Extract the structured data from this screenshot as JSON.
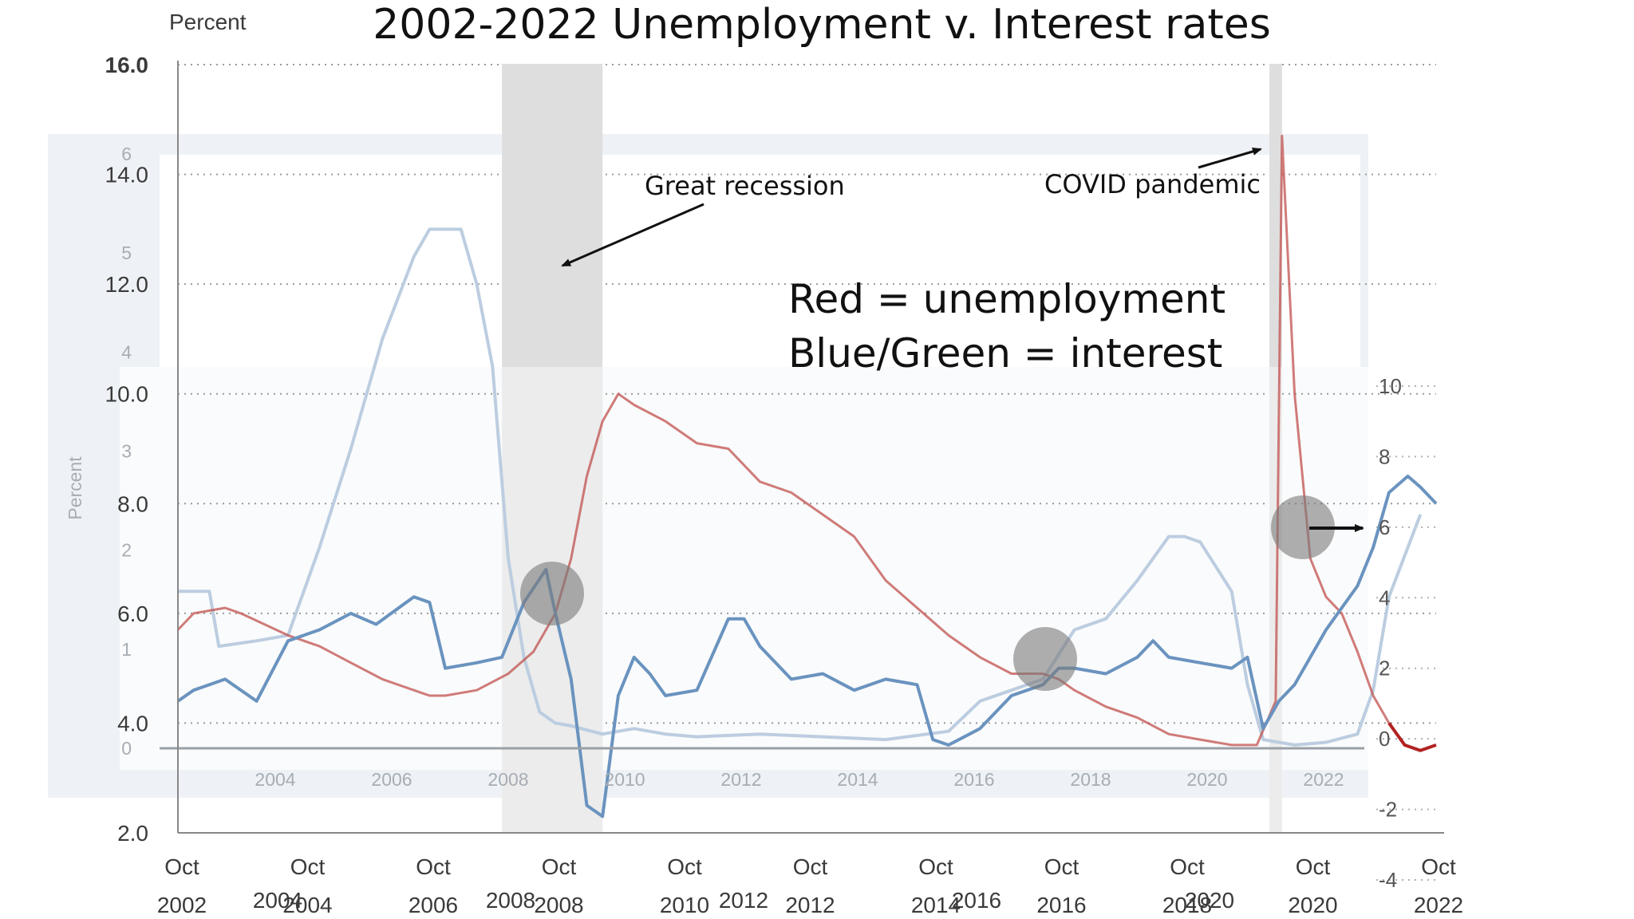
{
  "chart_data": {
    "type": "line",
    "title": "2002-2022 Unemployment v. Interest rates",
    "ylabel": "Percent",
    "inset_ylabel": "Percent",
    "left_axis": {
      "ylim": [
        2,
        16
      ],
      "ticks": [
        "2.0",
        "4.0",
        "6.0",
        "8.0",
        "10.0",
        "12.0",
        "14.0",
        "16.0"
      ]
    },
    "inset_left_axis": {
      "ylim": [
        0,
        6
      ],
      "ticks": [
        "0",
        "1",
        "2",
        "3",
        "4",
        "5",
        "6"
      ]
    },
    "right_axis": {
      "ylim": [
        -4,
        10
      ],
      "ticks": [
        "-4",
        "-2",
        "0",
        "2",
        "4",
        "6",
        "8",
        "10"
      ]
    },
    "x_months": [
      "Oct",
      "Oct",
      "Oct",
      "Oct",
      "Oct",
      "Oct",
      "Oct",
      "Oct",
      "Oct",
      "Oct",
      "Oct"
    ],
    "x_years": [
      "2002",
      "2004",
      "2006",
      "2008",
      "2010",
      "2012",
      "2014",
      "2016",
      "2018",
      "2020",
      "2022"
    ],
    "inset_x_years": [
      "2004",
      "2006",
      "2008",
      "2010",
      "2012",
      "2014",
      "2016",
      "2018",
      "2020",
      "2022"
    ],
    "second_x_years": [
      "2004",
      "2008",
      "2012",
      "2016",
      "2020"
    ],
    "recessions": [
      [
        2007.9,
        2009.5
      ],
      [
        2020.1,
        2020.3
      ]
    ],
    "series": [
      {
        "name": "unemployment",
        "color": "#c0504d",
        "points": [
          [
            2002.75,
            5.7
          ],
          [
            2003.0,
            6.0
          ],
          [
            2003.5,
            6.1
          ],
          [
            2003.75,
            6.0
          ],
          [
            2004.5,
            5.6
          ],
          [
            2005.0,
            5.4
          ],
          [
            2005.5,
            5.1
          ],
          [
            2006.0,
            4.8
          ],
          [
            2006.5,
            4.6
          ],
          [
            2006.75,
            4.5
          ],
          [
            2007.0,
            4.5
          ],
          [
            2007.5,
            4.6
          ],
          [
            2008.0,
            4.9
          ],
          [
            2008.4,
            5.3
          ],
          [
            2008.75,
            6.0
          ],
          [
            2009.0,
            7.0
          ],
          [
            2009.25,
            8.5
          ],
          [
            2009.5,
            9.5
          ],
          [
            2009.75,
            10.0
          ],
          [
            2010.0,
            9.8
          ],
          [
            2010.5,
            9.5
          ],
          [
            2011.0,
            9.1
          ],
          [
            2011.5,
            9.0
          ],
          [
            2012.0,
            8.4
          ],
          [
            2012.5,
            8.2
          ],
          [
            2013.0,
            7.8
          ],
          [
            2013.5,
            7.4
          ],
          [
            2014.0,
            6.6
          ],
          [
            2014.5,
            6.1
          ],
          [
            2015.0,
            5.6
          ],
          [
            2015.5,
            5.2
          ],
          [
            2016.0,
            4.9
          ],
          [
            2016.5,
            4.9
          ],
          [
            2016.75,
            4.8
          ],
          [
            2017.0,
            4.6
          ],
          [
            2017.5,
            4.3
          ],
          [
            2018.0,
            4.1
          ],
          [
            2018.5,
            3.8
          ],
          [
            2019.0,
            3.7
          ],
          [
            2019.5,
            3.6
          ],
          [
            2019.9,
            3.6
          ],
          [
            2020.2,
            4.4
          ],
          [
            2020.3,
            14.7
          ],
          [
            2020.5,
            10.0
          ],
          [
            2020.75,
            7.0
          ],
          [
            2021.0,
            6.3
          ],
          [
            2021.25,
            6.0
          ],
          [
            2021.5,
            5.3
          ],
          [
            2021.75,
            4.5
          ],
          [
            2022.0,
            4.0
          ],
          [
            2022.25,
            3.6
          ],
          [
            2022.5,
            3.5
          ],
          [
            2022.75,
            3.6
          ]
        ]
      },
      {
        "name": "interest-dark-blue",
        "color": "#6a93bf",
        "points": [
          [
            2002.75,
            4.4
          ],
          [
            2003.0,
            4.6
          ],
          [
            2003.5,
            4.8
          ],
          [
            2004.0,
            4.4
          ],
          [
            2004.5,
            5.5
          ],
          [
            2005.0,
            5.7
          ],
          [
            2005.5,
            6.0
          ],
          [
            2005.9,
            5.8
          ],
          [
            2006.5,
            6.3
          ],
          [
            2006.75,
            6.2
          ],
          [
            2007.0,
            5.0
          ],
          [
            2007.5,
            5.1
          ],
          [
            2007.9,
            5.2
          ],
          [
            2008.25,
            6.2
          ],
          [
            2008.6,
            6.8
          ],
          [
            2008.75,
            6.0
          ],
          [
            2009.0,
            4.8
          ],
          [
            2009.25,
            2.5
          ],
          [
            2009.5,
            2.3
          ],
          [
            2009.75,
            4.5
          ],
          [
            2010.0,
            5.2
          ],
          [
            2010.25,
            4.9
          ],
          [
            2010.5,
            4.5
          ],
          [
            2011.0,
            4.6
          ],
          [
            2011.5,
            5.9
          ],
          [
            2011.75,
            5.9
          ],
          [
            2012.0,
            5.4
          ],
          [
            2012.5,
            4.8
          ],
          [
            2013.0,
            4.9
          ],
          [
            2013.5,
            4.6
          ],
          [
            2014.0,
            4.8
          ],
          [
            2014.5,
            4.7
          ],
          [
            2014.75,
            3.7
          ],
          [
            2015.0,
            3.6
          ],
          [
            2015.5,
            3.9
          ],
          [
            2016.0,
            4.5
          ],
          [
            2016.5,
            4.7
          ],
          [
            2016.75,
            5.0
          ],
          [
            2017.0,
            5.0
          ],
          [
            2017.5,
            4.9
          ],
          [
            2018.0,
            5.2
          ],
          [
            2018.25,
            5.5
          ],
          [
            2018.5,
            5.2
          ],
          [
            2019.0,
            5.1
          ],
          [
            2019.5,
            5.0
          ],
          [
            2019.75,
            5.2
          ],
          [
            2020.0,
            3.9
          ],
          [
            2020.25,
            4.4
          ],
          [
            2020.5,
            4.7
          ],
          [
            2020.75,
            5.2
          ],
          [
            2021.0,
            5.7
          ],
          [
            2021.5,
            6.5
          ],
          [
            2021.75,
            7.2
          ],
          [
            2022.0,
            8.2
          ],
          [
            2022.3,
            8.5
          ],
          [
            2022.5,
            8.3
          ],
          [
            2022.75,
            8.0
          ]
        ]
      },
      {
        "name": "interest-light-blue",
        "color": "#bccde0",
        "points": [
          [
            2002.75,
            6.4
          ],
          [
            2003.25,
            6.4
          ],
          [
            2003.4,
            5.4
          ],
          [
            2004.0,
            5.5
          ],
          [
            2004.5,
            5.6
          ],
          [
            2005.0,
            7.2
          ],
          [
            2005.5,
            9.0
          ],
          [
            2006.0,
            11.0
          ],
          [
            2006.5,
            12.5
          ],
          [
            2006.75,
            13.0
          ],
          [
            2007.25,
            13.0
          ],
          [
            2007.5,
            12.0
          ],
          [
            2007.75,
            10.5
          ],
          [
            2008.0,
            7.0
          ],
          [
            2008.25,
            5.2
          ],
          [
            2008.5,
            4.2
          ],
          [
            2008.75,
            4.0
          ],
          [
            2009.0,
            3.95
          ],
          [
            2009.5,
            3.8
          ],
          [
            2010.0,
            3.9
          ],
          [
            2010.5,
            3.8
          ],
          [
            2011.0,
            3.75
          ],
          [
            2012.0,
            3.8
          ],
          [
            2013.0,
            3.75
          ],
          [
            2014.0,
            3.7
          ],
          [
            2015.0,
            3.85
          ],
          [
            2015.5,
            4.4
          ],
          [
            2016.0,
            4.6
          ],
          [
            2016.5,
            4.8
          ],
          [
            2017.0,
            5.7
          ],
          [
            2017.5,
            5.9
          ],
          [
            2018.0,
            6.6
          ],
          [
            2018.5,
            7.4
          ],
          [
            2018.75,
            7.4
          ],
          [
            2019.0,
            7.3
          ],
          [
            2019.5,
            6.4
          ],
          [
            2019.75,
            4.7
          ],
          [
            2020.0,
            3.7
          ],
          [
            2020.5,
            3.6
          ],
          [
            2021.0,
            3.65
          ],
          [
            2021.5,
            3.8
          ],
          [
            2021.75,
            4.6
          ],
          [
            2022.0,
            6.3
          ],
          [
            2022.5,
            7.8
          ]
        ]
      }
    ],
    "annotations": [
      "Great recession",
      "COVID pandemic"
    ],
    "notes": [
      "Red = unemployment",
      "Blue/Green = interest"
    ],
    "highlight_markers": 3,
    "grid": true
  }
}
